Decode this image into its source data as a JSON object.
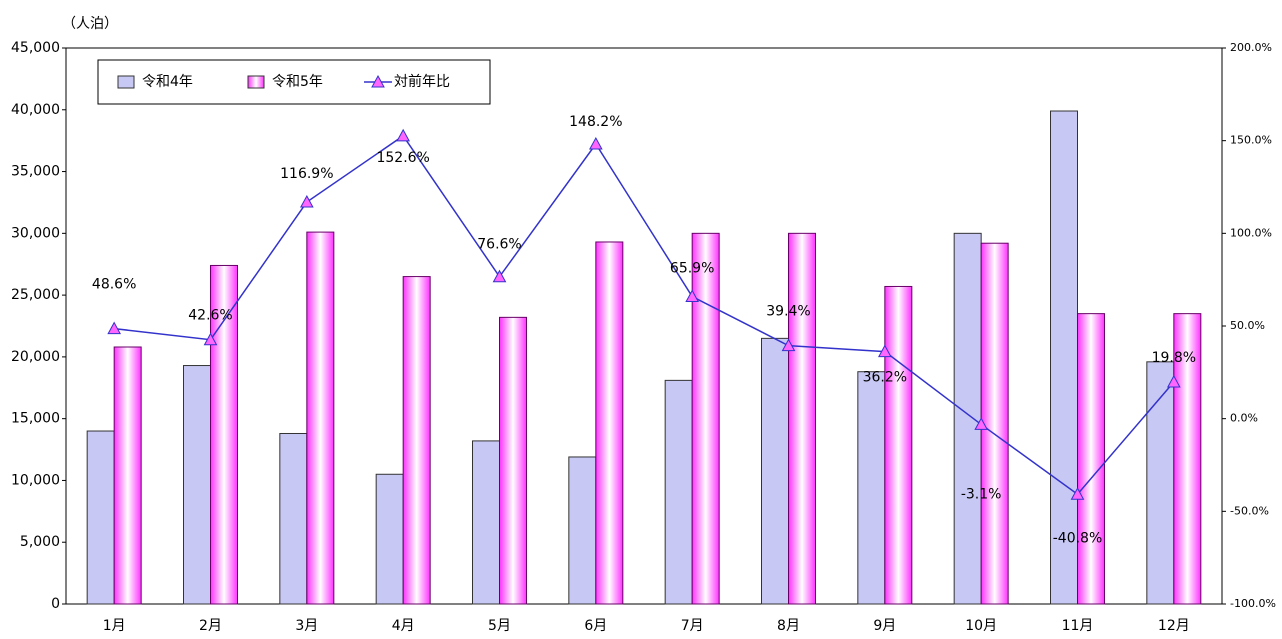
{
  "chart_data": {
    "type": "bar",
    "y_label": "（人泊）",
    "categories": [
      "1月",
      "2月",
      "3月",
      "4月",
      "5月",
      "6月",
      "7月",
      "8月",
      "9月",
      "10月",
      "11月",
      "12月"
    ],
    "series": [
      {
        "name": "令和4年",
        "color": "#c8c8f5",
        "values": [
          14000,
          19300,
          13800,
          10500,
          13200,
          11900,
          18100,
          21500,
          18800,
          30000,
          39900,
          19600
        ]
      },
      {
        "name": "令和5年",
        "color": "#ff33ff",
        "values": [
          20800,
          27400,
          30100,
          26500,
          23200,
          29300,
          30000,
          30000,
          25700,
          29200,
          23500,
          23500
        ]
      },
      {
        "name": "対前年比",
        "type": "line",
        "axis": "y2",
        "color": "#3333cc",
        "marker_color": "#ff66ff",
        "values": [
          48.6,
          42.6,
          116.9,
          152.6,
          76.6,
          148.2,
          65.9,
          39.4,
          36.2,
          -3.1,
          -40.8,
          19.8
        ],
        "value_labels": [
          "48.6%",
          "42.6%",
          "116.9%",
          "152.6%",
          "76.6%",
          "148.2%",
          "65.9%",
          "39.4%",
          "36.2%",
          "-3.1%",
          "-40.8%",
          "19.8%"
        ]
      }
    ],
    "ylim": [
      0,
      45000
    ],
    "yticks": [
      0,
      {
        "value": 5000,
        "label": "5,000"
      },
      {
        "value": 10000,
        "label": "10,000"
      },
      {
        "value": 15000,
        "label": "15,000"
      },
      {
        "value": 20000,
        "label": "20,000"
      },
      {
        "value": 25000,
        "label": "25,000"
      },
      {
        "value": 30000,
        "label": "30,000"
      },
      {
        "value": 35000,
        "label": "35,000"
      },
      {
        "value": 40000,
        "label": "40,000"
      },
      {
        "value": 45000,
        "label": "45,000"
      }
    ],
    "y2lim": [
      -100,
      200
    ],
    "y2ticks": [
      {
        "value": -100,
        "label": "-100.0%"
      },
      {
        "value": -50,
        "label": "-50.0%"
      },
      {
        "value": 0,
        "label": "0.0%"
      },
      {
        "value": 50,
        "label": "50.0%"
      },
      {
        "value": 100,
        "label": "100.0%"
      },
      {
        "value": 150,
        "label": "150.0%"
      },
      {
        "value": 200,
        "label": "200.0%"
      }
    ],
    "legend": "upper left"
  }
}
